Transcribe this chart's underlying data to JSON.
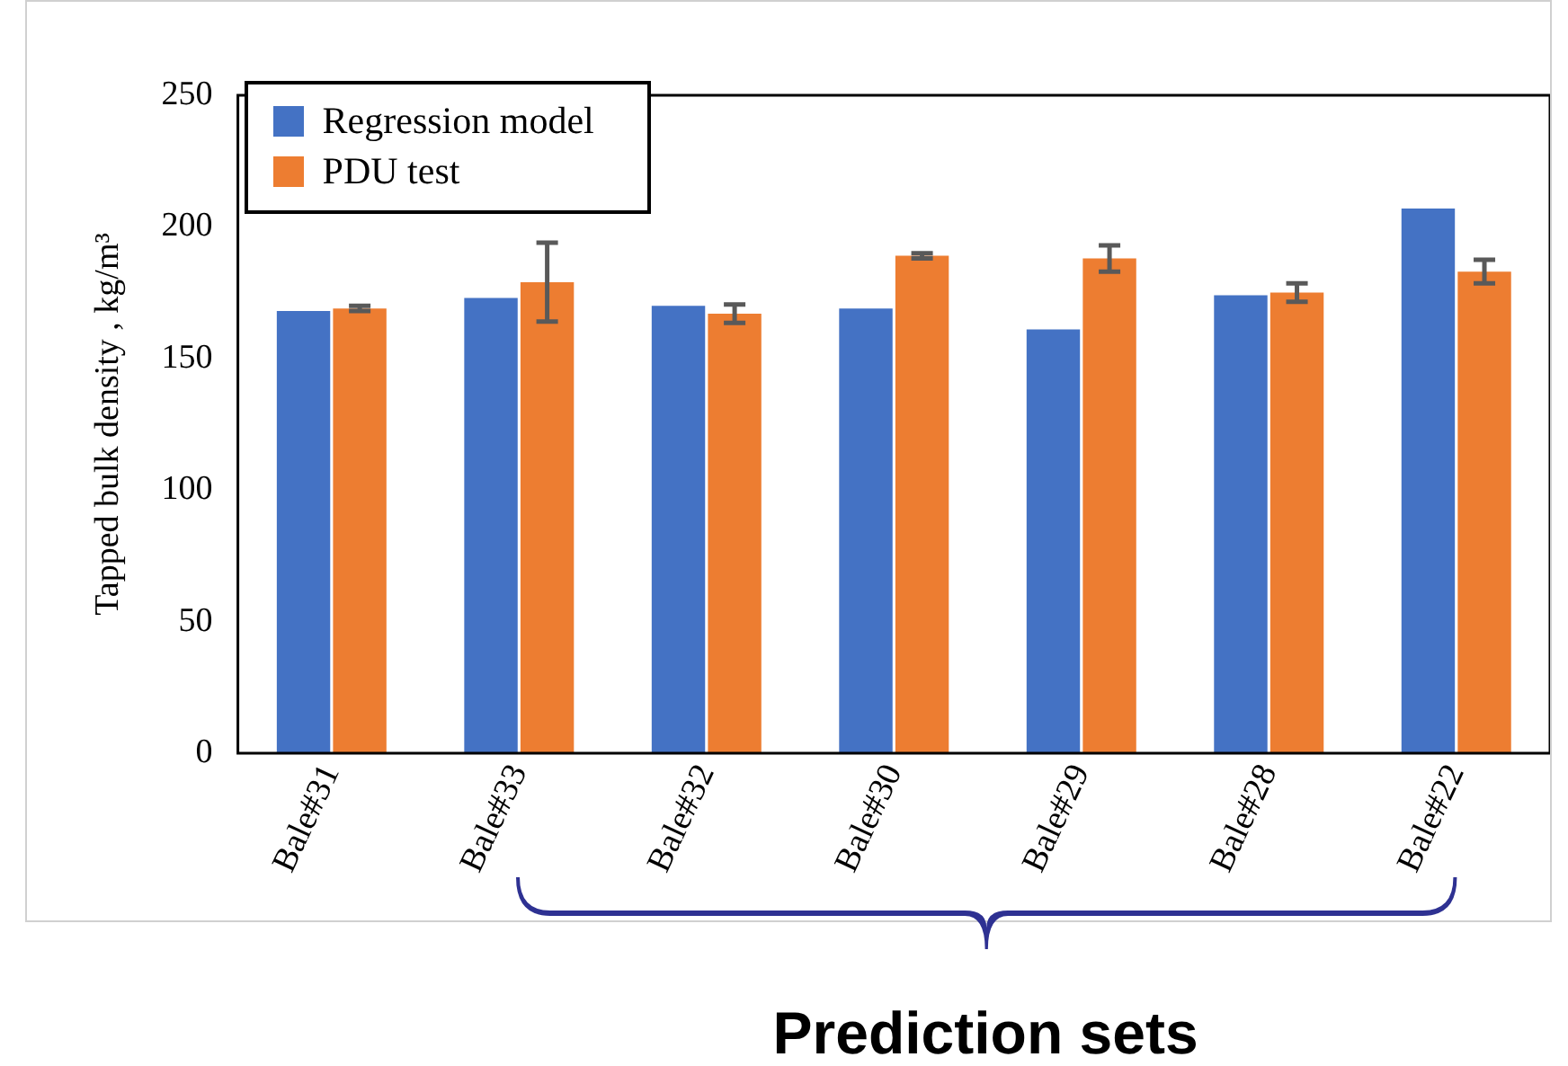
{
  "chart_data": {
    "type": "bar",
    "ylabel": "Tapped bulk density , kg/m³",
    "categories": [
      "Bale#31",
      "Bale#33",
      "Bale#32",
      "Bale#30",
      "Bale#29",
      "Bale#28",
      "Bale#22"
    ],
    "series": [
      {
        "name": "Regression model",
        "color": "#4472c4",
        "values": [
          168,
          173,
          170,
          169,
          161,
          174,
          207
        ]
      },
      {
        "name": "PDU test",
        "color": "#ed7d31",
        "values": [
          169,
          179,
          167,
          189,
          188,
          175,
          183
        ],
        "errors": [
          1,
          15,
          3.5,
          1,
          5,
          3.5,
          4.5
        ]
      }
    ],
    "ylim": [
      0,
      250
    ],
    "yticks": [
      0,
      50,
      100,
      150,
      200,
      250
    ],
    "grid": false,
    "legend": "top left",
    "annotations": [
      "Prediction sets"
    ]
  }
}
